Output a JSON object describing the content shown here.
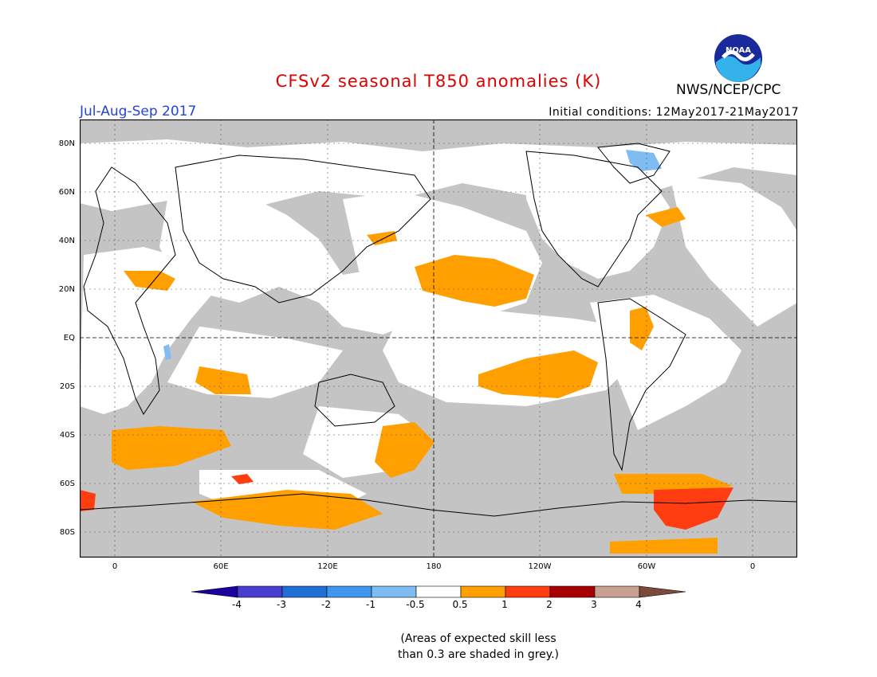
{
  "title": "CFSv2 seasonal T850 anomalies (K)",
  "season": "Jul-Aug-Sep 2017",
  "initial_conditions": "Initial conditions: 12May2017-21May2017",
  "agency": "NWS/NCEP/CPC",
  "logo_text": "NOAA",
  "lat_labels": [
    "80N",
    "60N",
    "40N",
    "20N",
    "EQ",
    "20S",
    "40S",
    "60S",
    "80S"
  ],
  "lon_labels": [
    "0",
    "60E",
    "120E",
    "180",
    "120W",
    "60W",
    "0"
  ],
  "colorbar": {
    "labels": [
      "-4",
      "-3",
      "-2",
      "-1",
      "-0.5",
      "0.5",
      "1",
      "2",
      "3",
      "4"
    ],
    "colors": [
      "#1c00a0",
      "#4a3ccf",
      "#1f6fd6",
      "#3f96ee",
      "#7fbcf2",
      "#ffffff",
      "#ff9f00",
      "#ff3d10",
      "#a80000",
      "#c8a090",
      "#7a4b3a"
    ]
  },
  "colors": {
    "skill_grey": "#c4c4c4",
    "positive_1": "#ff9f00",
    "positive_2": "#ff3d10",
    "negative_1": "#7fbcf2"
  },
  "note_line1": "(Areas of expected skill less",
  "note_line2": "than 0.3 are shaded in grey.)"
}
